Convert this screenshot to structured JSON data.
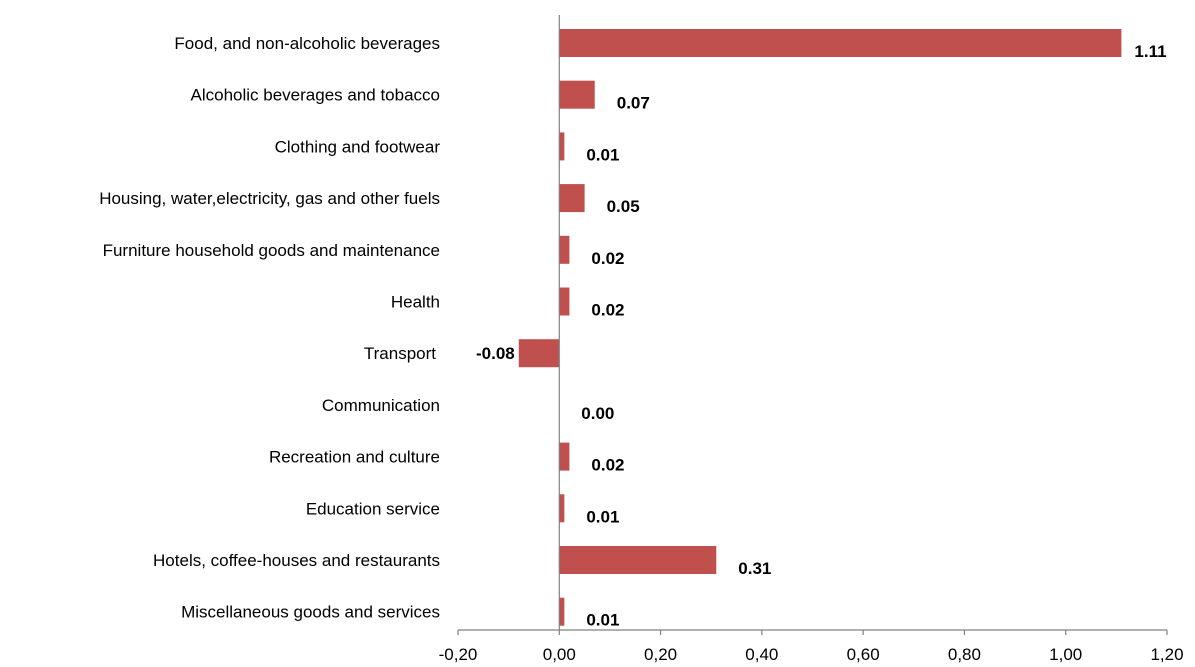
{
  "chart_data": {
    "type": "bar",
    "orientation": "horizontal",
    "categories": [
      "Food, and non-alcoholic beverages",
      "Alcoholic beverages and tobacco",
      "Clothing and footwear",
      "Housing, water,electricity, gas and other fuels",
      "Furniture  household goods and maintenance",
      "Health",
      "Transport",
      "Communication",
      "Recreation  and culture",
      "Education service",
      "Hotels, coffee-houses and restaurants",
      "Miscellaneous goods and services"
    ],
    "values": [
      1.11,
      0.07,
      0.01,
      0.05,
      0.02,
      0.02,
      -0.08,
      0.0,
      0.02,
      0.01,
      0.31,
      0.01
    ],
    "value_labels": [
      "1.11",
      "0.07",
      "0.01",
      "0.05",
      "0.02",
      "0.02",
      "-0.08",
      "0.00",
      "0.02",
      "0.01",
      "0.31",
      "0.01"
    ],
    "xlim": [
      -0.2,
      1.2
    ],
    "xticks": [
      "-0,20",
      "0,00",
      "0,20",
      "0,40",
      "0,60",
      "0,80",
      "1,00",
      "1,20"
    ],
    "title": "",
    "xlabel": "",
    "ylabel": "",
    "grid": false,
    "legend": "none",
    "bar_color": "#c0504d"
  }
}
